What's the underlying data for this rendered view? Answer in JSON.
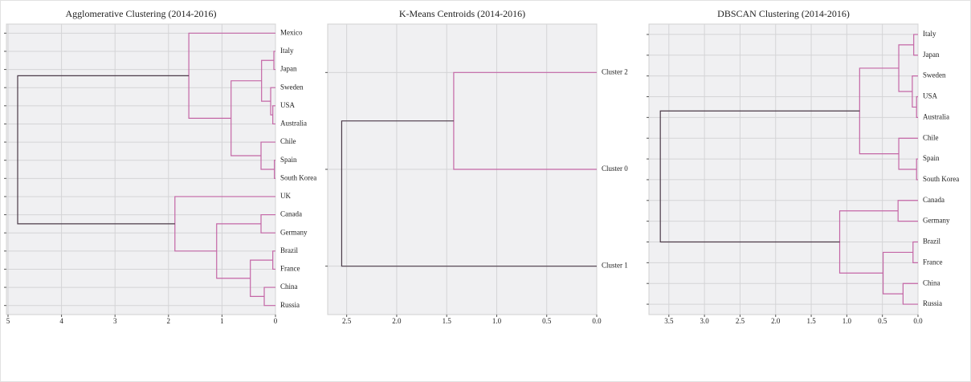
{
  "chart_data": [
    {
      "type": "dendrogram",
      "title": "Agglomerative Clustering (2014-2016)",
      "leaves": [
        "Mexico",
        "Italy",
        "Japan",
        "Sweden",
        "USA",
        "Australia",
        "Chile",
        "Spain",
        "South Korea",
        "UK",
        "Canada",
        "Germany",
        "Brazil",
        "France",
        "China",
        "Russia"
      ],
      "merges": [
        {
          "left": 1,
          "right": 2,
          "height": 0.03,
          "color": "#c466a6"
        },
        {
          "left": 4,
          "right": 5,
          "height": 0.05,
          "color": "#c466a6"
        },
        {
          "left": 3,
          "right": 17,
          "height": 0.09,
          "color": "#c466a6"
        },
        {
          "left": 16,
          "right": 18,
          "height": 0.26,
          "color": "#c466a6"
        },
        {
          "left": 7,
          "right": 8,
          "height": 0.02,
          "color": "#c466a6"
        },
        {
          "left": 6,
          "right": 20,
          "height": 0.27,
          "color": "#c466a6"
        },
        {
          "left": 19,
          "right": 21,
          "height": 0.83,
          "color": "#c466a6"
        },
        {
          "left": 0,
          "right": 22,
          "height": 1.62,
          "color": "#c466a6"
        },
        {
          "left": 10,
          "right": 11,
          "height": 0.27,
          "color": "#c466a6"
        },
        {
          "left": 12,
          "right": 13,
          "height": 0.05,
          "color": "#c466a6"
        },
        {
          "left": 14,
          "right": 15,
          "height": 0.21,
          "color": "#c466a6"
        },
        {
          "left": 25,
          "right": 26,
          "height": 0.47,
          "color": "#c466a6"
        },
        {
          "left": 24,
          "right": 27,
          "height": 1.1,
          "color": "#c466a6"
        },
        {
          "left": 9,
          "right": 28,
          "height": 1.88,
          "color": "#c466a6"
        },
        {
          "left": 23,
          "right": 29,
          "height": 4.82,
          "color": "#4b3a48"
        }
      ],
      "xlim": [
        5.03,
        0
      ],
      "xticks": [
        5,
        4,
        3,
        2,
        1,
        0
      ],
      "grid": true
    },
    {
      "type": "dendrogram",
      "title": "K-Means Centroids (2014-2016)",
      "leaves": [
        "Cluster 2",
        "Cluster 0",
        "Cluster 1"
      ],
      "merges": [
        {
          "left": 0,
          "right": 1,
          "height": 1.43,
          "color": "#c466a6"
        },
        {
          "left": 3,
          "right": 2,
          "height": 2.55,
          "color": "#4b3a48"
        }
      ],
      "xlim": [
        2.69,
        0
      ],
      "xticks": [
        2.5,
        {
          "value": 2,
          "label": "2.0"
        },
        1.5,
        {
          "value": 1,
          "label": "1.0"
        },
        0.5,
        {
          "value": 0,
          "label": "0.0"
        }
      ],
      "grid": true
    },
    {
      "type": "dendrogram",
      "title": "DBSCAN Clustering (2014-2016)",
      "leaves": [
        "Italy",
        "Japan",
        "Sweden",
        "USA",
        "Australia",
        "Chile",
        "Spain",
        "South Korea",
        "Canada",
        "Germany",
        "Brazil",
        "France",
        "China",
        "Russia"
      ],
      "merges": [
        {
          "left": 0,
          "right": 1,
          "height": 0.06,
          "color": "#c466a6"
        },
        {
          "left": 3,
          "right": 4,
          "height": 0.02,
          "color": "#c466a6"
        },
        {
          "left": 2,
          "right": 15,
          "height": 0.08,
          "color": "#c466a6"
        },
        {
          "left": 14,
          "right": 16,
          "height": 0.27,
          "color": "#c466a6"
        },
        {
          "left": 6,
          "right": 7,
          "height": 0.02,
          "color": "#c466a6"
        },
        {
          "left": 5,
          "right": 18,
          "height": 0.27,
          "color": "#c466a6"
        },
        {
          "left": 17,
          "right": 19,
          "height": 0.82,
          "color": "#c466a6"
        },
        {
          "left": 8,
          "right": 9,
          "height": 0.28,
          "color": "#c466a6"
        },
        {
          "left": 10,
          "right": 11,
          "height": 0.07,
          "color": "#c466a6"
        },
        {
          "left": 12,
          "right": 13,
          "height": 0.21,
          "color": "#c466a6"
        },
        {
          "left": 22,
          "right": 23,
          "height": 0.49,
          "color": "#c466a6"
        },
        {
          "left": 21,
          "right": 24,
          "height": 1.1,
          "color": "#c466a6"
        },
        {
          "left": 20,
          "right": 25,
          "height": 3.62,
          "color": "#4b3a48"
        }
      ],
      "xlim": [
        3.78,
        0
      ],
      "xticks": [
        3.5,
        {
          "value": 3,
          "label": "3.0"
        },
        2.5,
        {
          "value": 2,
          "label": "2.0"
        },
        1.5,
        {
          "value": 1,
          "label": "1.0"
        },
        0.5,
        {
          "value": 0,
          "label": "0.0"
        }
      ],
      "grid": true
    }
  ]
}
